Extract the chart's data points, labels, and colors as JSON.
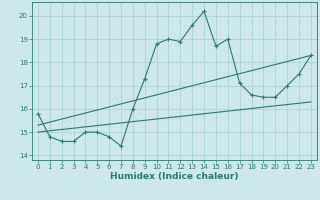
{
  "xlabel": "Humidex (Indice chaleur)",
  "line1_x": [
    0,
    1,
    2,
    3,
    4,
    5,
    6,
    7,
    8,
    9,
    10,
    11,
    12,
    13,
    14,
    15,
    16,
    17,
    18,
    19,
    20,
    21,
    22,
    23
  ],
  "line1_y": [
    15.8,
    14.8,
    14.6,
    14.6,
    15.0,
    15.0,
    14.8,
    14.4,
    16.0,
    17.3,
    18.8,
    19.0,
    18.9,
    19.6,
    20.2,
    18.7,
    19.0,
    17.1,
    16.6,
    16.5,
    16.5,
    17.0,
    17.5,
    18.3
  ],
  "line2_x": [
    0,
    23
  ],
  "line2_y": [
    15.0,
    16.3
  ],
  "line3_x": [
    0,
    23
  ],
  "line3_y": [
    15.3,
    18.3
  ],
  "line_color": "#2a7a6a",
  "bg_color": "#cce8e8",
  "grid_color": "#aacece",
  "xlim": [
    -0.5,
    23.5
  ],
  "ylim": [
    13.8,
    20.6
  ],
  "yticks": [
    14,
    15,
    16,
    17,
    18,
    19,
    20
  ],
  "xticks": [
    0,
    1,
    2,
    3,
    4,
    5,
    6,
    7,
    8,
    9,
    10,
    11,
    12,
    13,
    14,
    15,
    16,
    17,
    18,
    19,
    20,
    21,
    22,
    23
  ],
  "xlabel_fontsize": 6.5,
  "tick_fontsize": 5.0
}
